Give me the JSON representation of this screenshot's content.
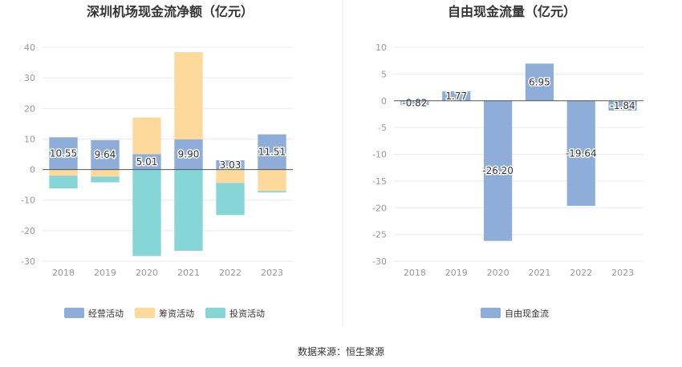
{
  "source_text": "数据来源：恒生聚源",
  "colors": {
    "operating": "#8eadd9",
    "financing": "#fdd99b",
    "investing": "#86d6d8",
    "free": "#8eadd9"
  },
  "chart_data": [
    {
      "type": "bar",
      "stacked": true,
      "title": "深圳机场现金流净额（亿元）",
      "categories": [
        "2018",
        "2019",
        "2020",
        "2021",
        "2022",
        "2023"
      ],
      "series": [
        {
          "name": "经营活动",
          "values": [
            10.55,
            9.64,
            5.01,
            9.9,
            3.03,
            11.51
          ],
          "labels": [
            "10.55",
            "9.64",
            "5.01",
            "9.90",
            "3.03",
            "11.51"
          ]
        },
        {
          "name": "筹资活动",
          "values": [
            -2.0,
            -2.3,
            12.0,
            28.5,
            -4.4,
            -7.0
          ]
        },
        {
          "name": "投资活动",
          "values": [
            -4.2,
            -1.9,
            -28.3,
            -26.6,
            -10.5,
            -0.5
          ]
        }
      ],
      "yticks": [
        "40",
        "30",
        "20",
        "10",
        "0",
        "-10",
        "-20",
        "-30"
      ],
      "ylim": [
        -30,
        40
      ],
      "grid": true,
      "legend": "bottom"
    },
    {
      "type": "bar",
      "title": "自由现金流量（亿元）",
      "categories": [
        "2018",
        "2019",
        "2020",
        "2021",
        "2022",
        "2023"
      ],
      "series": [
        {
          "name": "自由现金流",
          "values": [
            -0.82,
            1.77,
            -26.2,
            6.95,
            -19.64,
            -1.84
          ],
          "labels": [
            "-0.82",
            "1.77",
            "-26.20",
            "6.95",
            "-19.64",
            "-1.84"
          ]
        }
      ],
      "yticks": [
        "10",
        "5",
        "0",
        "-5",
        "-10",
        "-15",
        "-20",
        "-25",
        "-30"
      ],
      "ylim": [
        -30,
        10
      ],
      "grid": true,
      "legend": "bottom"
    }
  ]
}
